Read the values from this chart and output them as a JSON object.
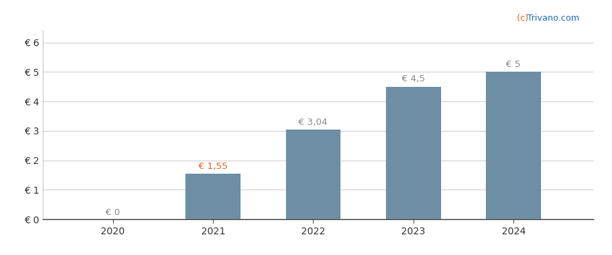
{
  "years": [
    2020,
    2021,
    2022,
    2023,
    2024
  ],
  "values": [
    0,
    1.55,
    3.04,
    4.5,
    5
  ],
  "bar_labels": [
    "€ 0",
    "€ 1,55",
    "€ 3,04",
    "€ 4,5",
    "€ 5"
  ],
  "bar_color": "#6e8fa3",
  "background_color": "#ffffff",
  "ytick_labels": [
    "€ 0",
    "€ 1",
    "€ 2",
    "€ 3",
    "€ 4",
    "€ 5",
    "€ 6"
  ],
  "ytick_values": [
    0,
    1,
    2,
    3,
    4,
    5,
    6
  ],
  "ylim": [
    0,
    6.4
  ],
  "xlim": [
    2019.3,
    2024.8
  ],
  "watermark_c": "(c) ",
  "watermark_rest": "Trivano.com",
  "watermark_color_c": "#e06020",
  "watermark_color_rest": "#1a6eb5",
  "grid_color": "#d0d0d0",
  "label_fontsize": 9.5,
  "tick_fontsize": 10,
  "bar_width": 0.55,
  "label_color_orange": "#e06020",
  "label_color_grey": "#888888"
}
